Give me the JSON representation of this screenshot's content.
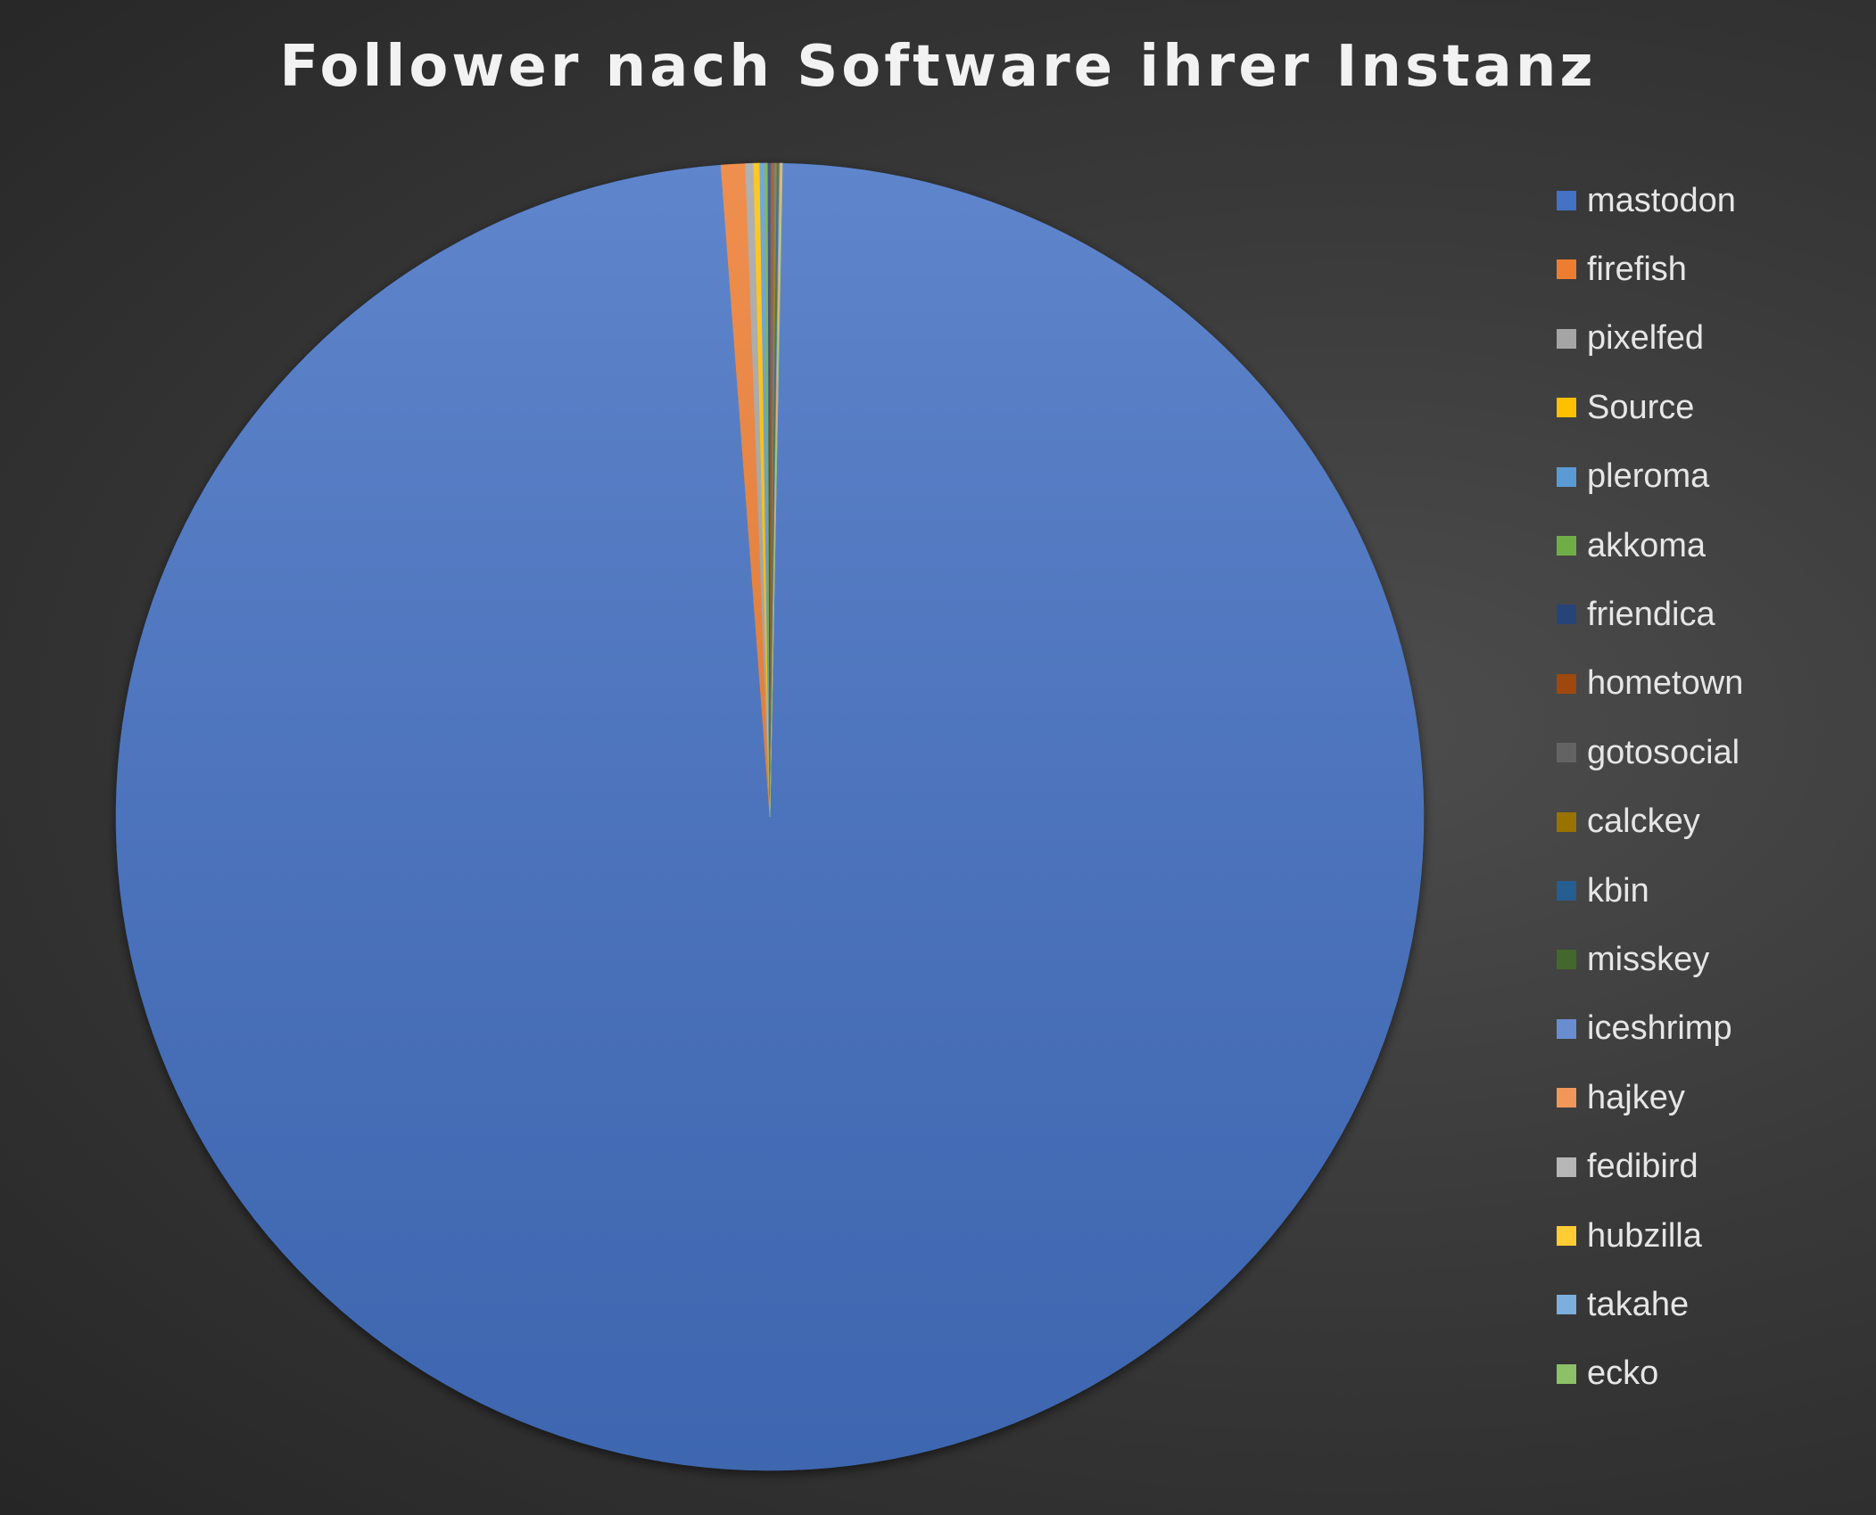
{
  "chart_data": {
    "type": "pie",
    "title": "Follower nach Software ihrer Instanz",
    "legend_position": "right",
    "categories": [
      "mastodon",
      "firefish",
      "pixelfed",
      "Source",
      "pleroma",
      "akkoma",
      "friendica",
      "hometown",
      "gotosocial",
      "calckey",
      "kbin",
      "misskey",
      "iceshrimp",
      "hajkey",
      "fedibird",
      "hubzilla",
      "takahe",
      "ecko"
    ],
    "values": [
      98.5,
      0.6,
      0.2,
      0.15,
      0.12,
      0.08,
      0.07,
      0.06,
      0.05,
      0.04,
      0.03,
      0.03,
      0.02,
      0.02,
      0.01,
      0.01,
      0.005,
      0.005
    ],
    "colors": [
      "#4472c4",
      "#ed7d31",
      "#a5a5a5",
      "#ffc000",
      "#5b9bd5",
      "#70ad47",
      "#264478",
      "#9e480e",
      "#636363",
      "#997300",
      "#255e91",
      "#43682b",
      "#698ed0",
      "#f1975a",
      "#b7b7b7",
      "#ffcd33",
      "#7cafdd",
      "#8cc168"
    ]
  }
}
